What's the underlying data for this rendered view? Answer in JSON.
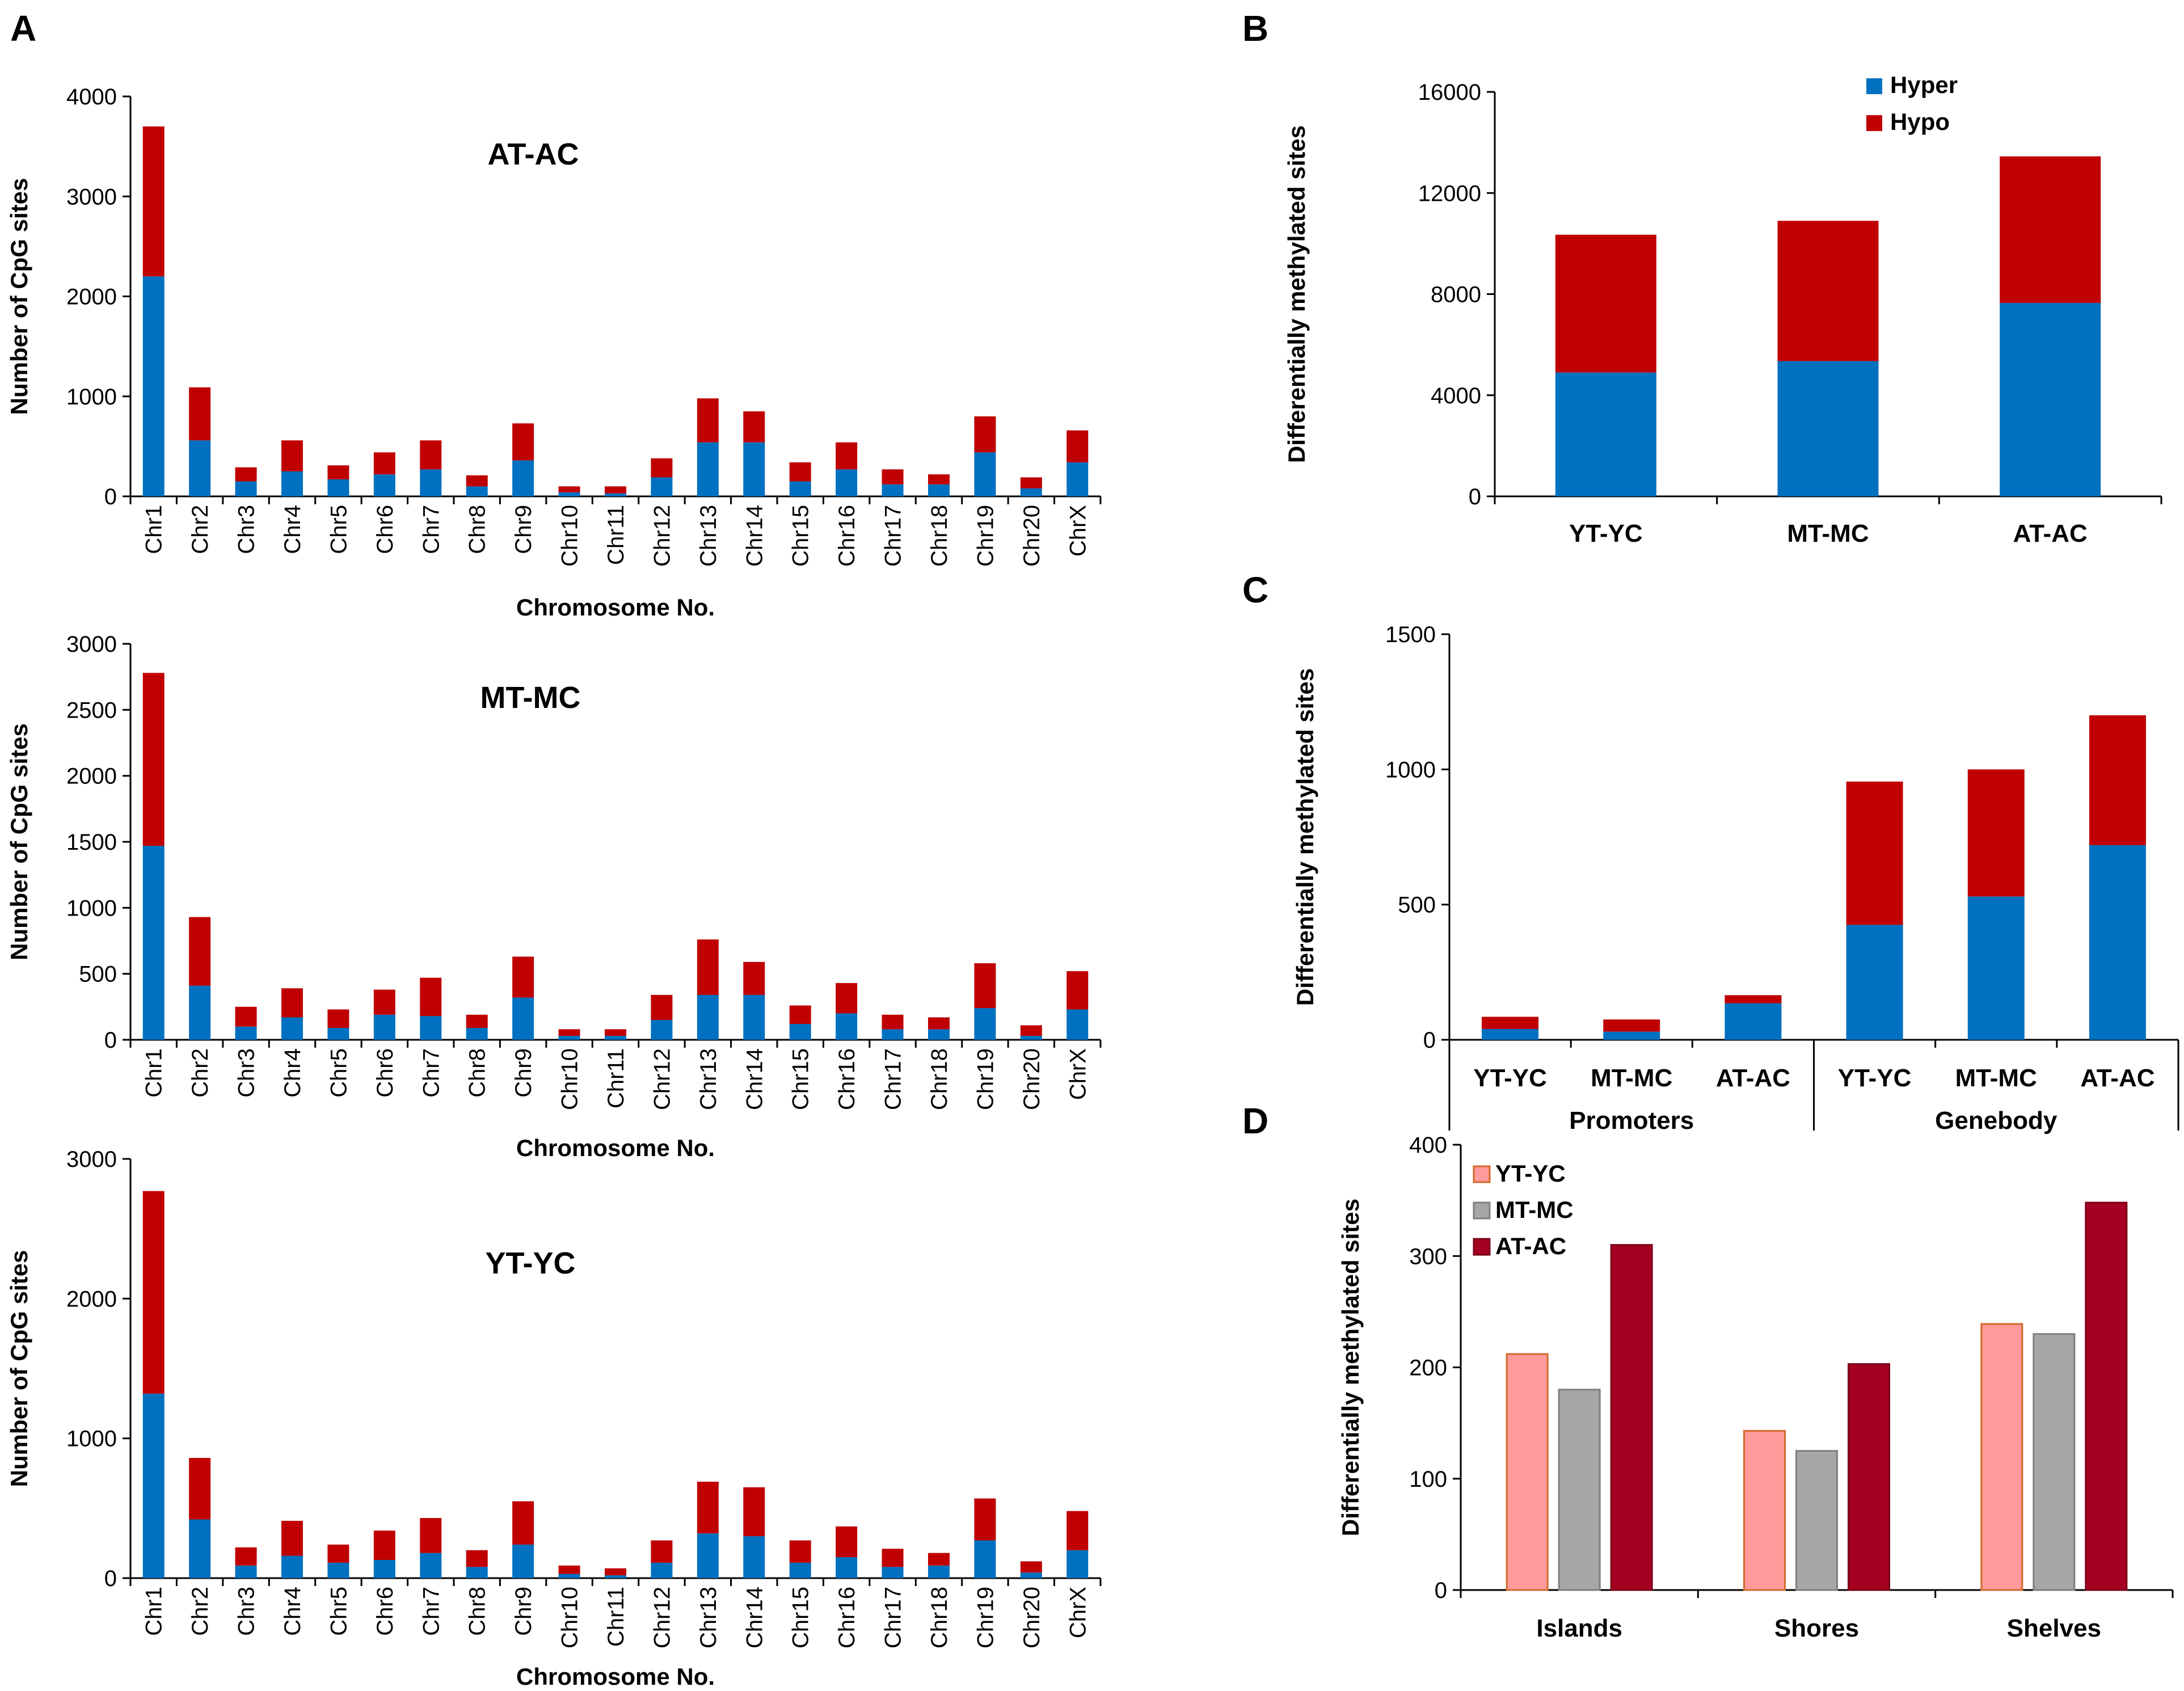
{
  "colors": {
    "hyper": "#0070c0",
    "hypo": "#c00000",
    "yt_yc": "#ff9a9a",
    "yt_yc_border": "#d46a2a",
    "mt_mc": "#a6a6a6",
    "mt_mc_border": "#7f7f7f",
    "at_ac": "#a50021",
    "at_ac_border": "#7a0018"
  },
  "chart_data": [
    {
      "id": "A1",
      "panel_label": "A",
      "type": "bar",
      "stacked": true,
      "title": "AT-AC",
      "xlabel": "Chromosome No.",
      "ylabel": "Number of CpG sites",
      "ylim": [
        0,
        4000
      ],
      "yticks": [
        0,
        1000,
        2000,
        3000,
        4000
      ],
      "categories": [
        "Chr1",
        "Chr2",
        "Chr3",
        "Chr4",
        "Chr5",
        "Chr6",
        "Chr7",
        "Chr8",
        "Chr9",
        "Chr10",
        "Chr11",
        "Chr12",
        "Chr13",
        "Chr14",
        "Chr15",
        "Chr16",
        "Chr17",
        "Chr18",
        "Chr19",
        "Chr20",
        "ChrX"
      ],
      "series": [
        {
          "name": "Hyper",
          "color": "#0070c0",
          "values": [
            2200,
            560,
            150,
            250,
            170,
            220,
            270,
            100,
            360,
            40,
            30,
            190,
            540,
            540,
            150,
            270,
            120,
            120,
            440,
            80,
            340
          ]
        },
        {
          "name": "Hypo",
          "color": "#c00000",
          "values": [
            1500,
            530,
            140,
            310,
            140,
            220,
            290,
            110,
            370,
            60,
            70,
            190,
            440,
            310,
            190,
            270,
            150,
            100,
            360,
            110,
            320
          ]
        }
      ]
    },
    {
      "id": "A2",
      "panel_label": "",
      "type": "bar",
      "stacked": true,
      "title": "MT-MC",
      "xlabel": "Chromosome No.",
      "ylabel": "Number of CpG sites",
      "ylim": [
        0,
        3000
      ],
      "yticks": [
        0,
        500,
        1000,
        1500,
        2000,
        2500,
        3000
      ],
      "categories": [
        "Chr1",
        "Chr2",
        "Chr3",
        "Chr4",
        "Chr5",
        "Chr6",
        "Chr7",
        "Chr8",
        "Chr9",
        "Chr10",
        "Chr11",
        "Chr12",
        "Chr13",
        "Chr14",
        "Chr15",
        "Chr16",
        "Chr17",
        "Chr18",
        "Chr19",
        "Chr20",
        "ChrX"
      ],
      "series": [
        {
          "name": "Hyper",
          "color": "#0070c0",
          "values": [
            1470,
            410,
            100,
            170,
            90,
            190,
            180,
            90,
            320,
            30,
            30,
            150,
            340,
            340,
            120,
            200,
            80,
            80,
            240,
            30,
            230
          ]
        },
        {
          "name": "Hypo",
          "color": "#c00000",
          "values": [
            1310,
            520,
            150,
            220,
            140,
            190,
            290,
            100,
            310,
            50,
            50,
            190,
            420,
            250,
            140,
            230,
            110,
            90,
            340,
            80,
            290
          ]
        }
      ]
    },
    {
      "id": "A3",
      "panel_label": "",
      "type": "bar",
      "stacked": true,
      "title": "YT-YC",
      "xlabel": "Chromosome No.",
      "ylabel": "Number of CpG sites",
      "ylim": [
        0,
        3000
      ],
      "yticks": [
        0,
        1000,
        2000,
        3000
      ],
      "categories": [
        "Chr1",
        "Chr2",
        "Chr3",
        "Chr4",
        "Chr5",
        "Chr6",
        "Chr7",
        "Chr8",
        "Chr9",
        "Chr10",
        "Chr11",
        "Chr12",
        "Chr13",
        "Chr14",
        "Chr15",
        "Chr16",
        "Chr17",
        "Chr18",
        "Chr19",
        "Chr20",
        "ChrX"
      ],
      "series": [
        {
          "name": "Hyper",
          "color": "#0070c0",
          "values": [
            1320,
            420,
            90,
            160,
            110,
            130,
            180,
            80,
            240,
            30,
            20,
            110,
            320,
            300,
            110,
            150,
            80,
            90,
            270,
            40,
            200
          ]
        },
        {
          "name": "Hypo",
          "color": "#c00000",
          "values": [
            1450,
            440,
            130,
            250,
            130,
            210,
            250,
            120,
            310,
            60,
            50,
            160,
            370,
            350,
            160,
            220,
            130,
            90,
            300,
            80,
            280
          ]
        }
      ]
    },
    {
      "id": "B",
      "panel_label": "B",
      "type": "bar",
      "stacked": true,
      "title": "",
      "xlabel": "",
      "ylabel": "Differentially methylated sites",
      "ylim": [
        0,
        16000
      ],
      "yticks": [
        0,
        4000,
        8000,
        12000,
        16000
      ],
      "categories": [
        "YT-YC",
        "MT-MC",
        "AT-AC"
      ],
      "legend": "top-center",
      "series": [
        {
          "name": "Hyper",
          "color": "#0070c0",
          "values": [
            4900,
            5350,
            7650
          ]
        },
        {
          "name": "Hypo",
          "color": "#c00000",
          "values": [
            5450,
            5550,
            5800
          ]
        }
      ]
    },
    {
      "id": "C",
      "panel_label": "C",
      "type": "bar",
      "stacked": true,
      "title": "",
      "xlabel": "",
      "ylabel": "Differentially methylated sites",
      "ylim": [
        0,
        1500
      ],
      "yticks": [
        0,
        500,
        1000,
        1500
      ],
      "categories": [
        "YT-YC",
        "MT-MC",
        "AT-AC",
        "YT-YC",
        "MT-MC",
        "AT-AC"
      ],
      "groups": [
        {
          "name": "Promoters",
          "span": 3
        },
        {
          "name": "Genebody",
          "span": 3
        }
      ],
      "series": [
        {
          "name": "Hyper",
          "color": "#0070c0",
          "values": [
            40,
            30,
            135,
            425,
            530,
            720
          ]
        },
        {
          "name": "Hypo",
          "color": "#c00000",
          "values": [
            45,
            45,
            30,
            530,
            470,
            480
          ]
        }
      ]
    },
    {
      "id": "D",
      "panel_label": "D",
      "type": "bar",
      "stacked": false,
      "title": "",
      "xlabel": "",
      "ylabel": "Differentially methylated sites",
      "ylim": [
        0,
        400
      ],
      "yticks": [
        0,
        100,
        200,
        300,
        400
      ],
      "categories": [
        "Islands",
        "Shores",
        "Shelves"
      ],
      "legend": "top-left",
      "series": [
        {
          "name": "YT-YC",
          "color": "#ff9a9a",
          "border": "#d46a2a",
          "values": [
            212,
            143,
            239
          ]
        },
        {
          "name": "MT-MC",
          "color": "#a6a6a6",
          "border": "#7f7f7f",
          "values": [
            180,
            125,
            230
          ]
        },
        {
          "name": "AT-AC",
          "color": "#a50021",
          "border": "#7a0018",
          "values": [
            310,
            203,
            348
          ]
        }
      ]
    }
  ]
}
